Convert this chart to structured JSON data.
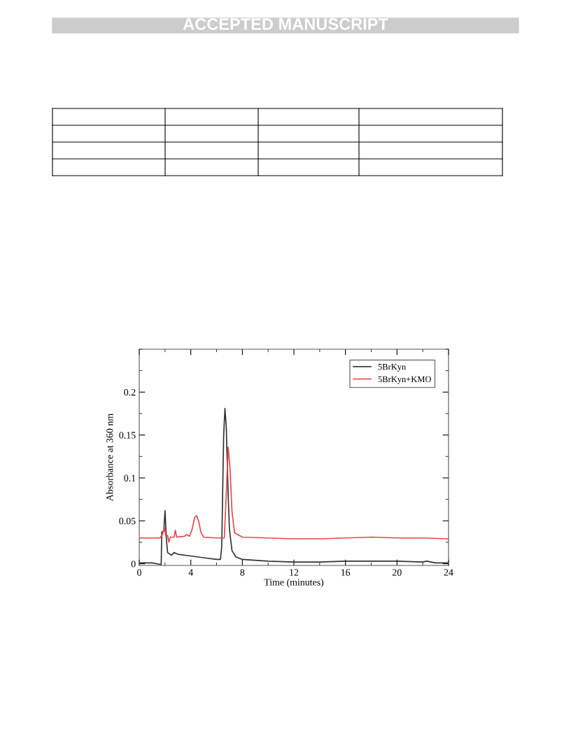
{
  "chart_data": {
    "type": "line",
    "xlabel": "Time (minutes)",
    "ylabel": "Absorbance at 360 nm",
    "annotations": [
      "ACCEPTED MANUSCRIPT"
    ],
    "xlim": [
      0,
      24
    ],
    "xticks": [
      0,
      4,
      8,
      12,
      16,
      20,
      24
    ],
    "ylim": [
      -0.002,
      0.25
    ],
    "yticks": [
      0,
      0.05,
      {
        "value": 0.1,
        "label": "0.1"
      },
      0.15,
      {
        "value": 0.2,
        "label": "0.2"
      }
    ],
    "legend": "top right",
    "grid": false,
    "series": [
      {
        "name": "5BrKyn",
        "color": "#333333",
        "x": [
          0,
          1,
          1.7,
          1.75,
          1.9,
          2.0,
          2.1,
          2.2,
          2.5,
          2.7,
          3,
          4,
          5,
          6,
          6.3,
          6.4,
          6.55,
          6.65,
          6.75,
          6.9,
          7.0,
          7.2,
          7.5,
          8,
          10,
          12,
          14,
          16,
          18,
          20,
          22,
          22.3,
          23,
          24
        ],
        "values": [
          0.001,
          0.001,
          -0.001,
          0.037,
          0.038,
          0.062,
          0.03,
          0.013,
          0.01,
          0.013,
          0.011,
          0.009,
          0.007,
          0.005,
          0.005,
          0.02,
          0.15,
          0.181,
          0.16,
          0.08,
          0.04,
          0.015,
          0.008,
          0.005,
          0.003,
          0.002,
          0.002,
          0.003,
          0.003,
          0.003,
          0.002,
          0.003,
          0.001,
          0.001
        ]
      },
      {
        "name": "5BrKyn+KMO",
        "color": "#e8474a",
        "x": [
          0,
          1.6,
          1.8,
          1.95,
          2.05,
          2.2,
          2.3,
          2.4,
          2.7,
          2.8,
          2.9,
          3.5,
          3.7,
          3.9,
          4.1,
          4.3,
          4.45,
          4.6,
          4.8,
          5,
          6,
          6.6,
          6.75,
          6.9,
          7.05,
          7.2,
          7.4,
          8,
          10,
          12,
          14,
          16,
          18,
          20,
          22,
          24
        ],
        "values": [
          0.03,
          0.03,
          0.034,
          0.043,
          0.033,
          0.033,
          0.025,
          0.031,
          0.031,
          0.039,
          0.031,
          0.032,
          0.034,
          0.032,
          0.04,
          0.054,
          0.056,
          0.05,
          0.036,
          0.031,
          0.03,
          0.03,
          0.08,
          0.136,
          0.11,
          0.06,
          0.036,
          0.031,
          0.03,
          0.029,
          0.029,
          0.03,
          0.031,
          0.03,
          0.03,
          0.029
        ]
      }
    ]
  }
}
